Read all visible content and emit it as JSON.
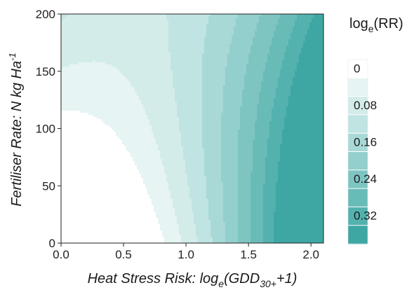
{
  "chart_data": {
    "type": "heatmap",
    "subtype": "filled-contour",
    "xlabel": {
      "main": "Heat Stress Risk: log",
      "sub1": "e",
      "open": "(GDD",
      "sub2": "30+",
      "close": "+1)"
    },
    "ylabel": {
      "main": "Fertiliser Rate: N kg Ha",
      "sup": "-1"
    },
    "x_ticks": [
      "0.0",
      "0.5",
      "1.0",
      "1.5",
      "2.0"
    ],
    "x_tick_values": [
      0,
      0.5,
      1.0,
      1.5,
      2.0
    ],
    "y_ticks": [
      "0",
      "50",
      "100",
      "150",
      "200"
    ],
    "y_tick_values": [
      0,
      50,
      100,
      150,
      200
    ],
    "xlim": [
      0,
      2.1
    ],
    "ylim": [
      0,
      200
    ],
    "legend": {
      "title_main": "log",
      "title_sub": "e",
      "title_rest": "(RR)",
      "placement": "right",
      "tick_labels": [
        "0",
        "0.08",
        "0.16",
        "0.24",
        "0.32"
      ],
      "tick_values": [
        0,
        0.08,
        0.16,
        0.24,
        0.32
      ],
      "level_bounds": [
        -0.04,
        0,
        0.04,
        0.08,
        0.12,
        0.16,
        0.2,
        0.24,
        0.28,
        0.32,
        0.36
      ],
      "colors": [
        "#ffffff",
        "#e6f4f3",
        "#d3ecea",
        "#c0e4e2",
        "#a8d9d6",
        "#93cfcc",
        "#7ec5c2",
        "#69bbb8",
        "#53b1ae",
        "#3ea7a4"
      ]
    }
  }
}
